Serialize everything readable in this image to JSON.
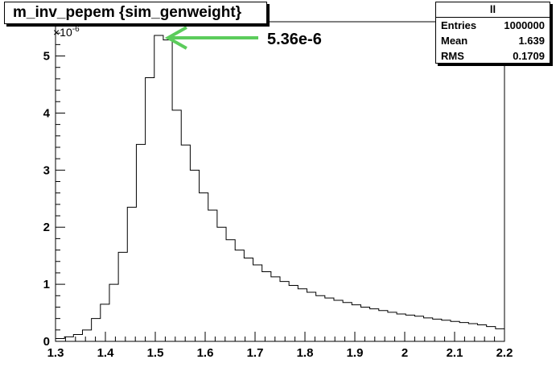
{
  "chart_data": {
    "type": "bar",
    "title": "m_inv_pepem {sim_genweight}",
    "y_multiplier": "×10",
    "y_exponent": "-6",
    "xlim": [
      1.3,
      2.2
    ],
    "ylim": [
      0,
      5.6
    ],
    "x_ticks": [
      "1.3",
      "1.4",
      "1.5",
      "1.6",
      "1.7",
      "1.8",
      "1.9",
      "2",
      "2.1",
      "2.2"
    ],
    "y_ticks": [
      "0",
      "1",
      "2",
      "3",
      "4",
      "5"
    ],
    "bin_edges_start": 1.3,
    "bin_width": 0.018,
    "values": [
      0.05,
      0.08,
      0.12,
      0.2,
      0.4,
      0.65,
      1.0,
      1.56,
      2.35,
      3.45,
      4.62,
      5.36,
      5.28,
      4.05,
      3.44,
      3.0,
      2.6,
      2.3,
      2.0,
      1.78,
      1.6,
      1.46,
      1.34,
      1.22,
      1.13,
      1.05,
      0.98,
      0.92,
      0.86,
      0.8,
      0.76,
      0.72,
      0.68,
      0.64,
      0.6,
      0.57,
      0.54,
      0.51,
      0.48,
      0.46,
      0.44,
      0.41,
      0.39,
      0.37,
      0.35,
      0.33,
      0.31,
      0.29,
      0.26,
      0.22
    ],
    "annotation": {
      "text": "5.36e-6",
      "color": "#5ccc5c",
      "x": 1.524,
      "y": 5.36
    }
  },
  "stats": {
    "name": "ll",
    "rows": [
      {
        "label": "Entries",
        "value": "1000000"
      },
      {
        "label": "Mean",
        "value": "1.639"
      },
      {
        "label": "RMS",
        "value": "0.1709"
      }
    ]
  }
}
